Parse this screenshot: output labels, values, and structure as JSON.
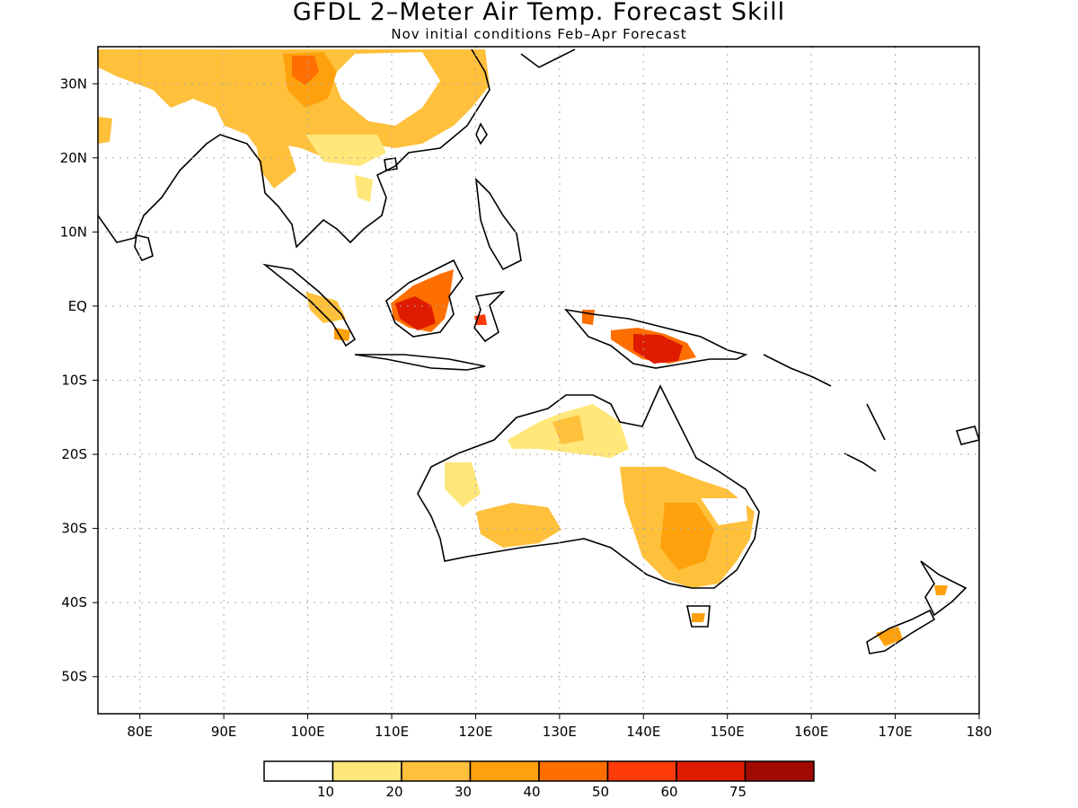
{
  "title": "GFDL 2–Meter Air Temp. Forecast Skill",
  "subtitle": "Nov initial conditions  Feb–Apr Forecast",
  "map": {
    "lon_range": [
      75,
      180
    ],
    "lat_range": [
      -55,
      35
    ],
    "lat_ticks": [
      {
        "value": 30,
        "label": "30N"
      },
      {
        "value": 20,
        "label": "20N"
      },
      {
        "value": 10,
        "label": "10N"
      },
      {
        "value": 0,
        "label": "EQ"
      },
      {
        "value": -10,
        "label": "10S"
      },
      {
        "value": -20,
        "label": "20S"
      },
      {
        "value": -30,
        "label": "30S"
      },
      {
        "value": -40,
        "label": "40S"
      },
      {
        "value": -50,
        "label": "50S"
      }
    ],
    "lon_ticks": [
      {
        "value": 80,
        "label": "80E"
      },
      {
        "value": 90,
        "label": "90E"
      },
      {
        "value": 100,
        "label": "100E"
      },
      {
        "value": 110,
        "label": "110E"
      },
      {
        "value": 120,
        "label": "120E"
      },
      {
        "value": 130,
        "label": "130E"
      },
      {
        "value": 140,
        "label": "140E"
      },
      {
        "value": 150,
        "label": "150E"
      },
      {
        "value": 160,
        "label": "160E"
      },
      {
        "value": 170,
        "label": "170E"
      },
      {
        "value": 180,
        "label": "180"
      }
    ],
    "grid": "dotted"
  },
  "colorbar": {
    "colors": [
      "#ffffff",
      "#ffe77a",
      "#ffc03b",
      "#ffa10c",
      "#ff6e00",
      "#ff3b0a",
      "#df1c00",
      "#a00a00"
    ],
    "labels": [
      "10",
      "20",
      "30",
      "40",
      "50",
      "60",
      "75"
    ]
  }
}
